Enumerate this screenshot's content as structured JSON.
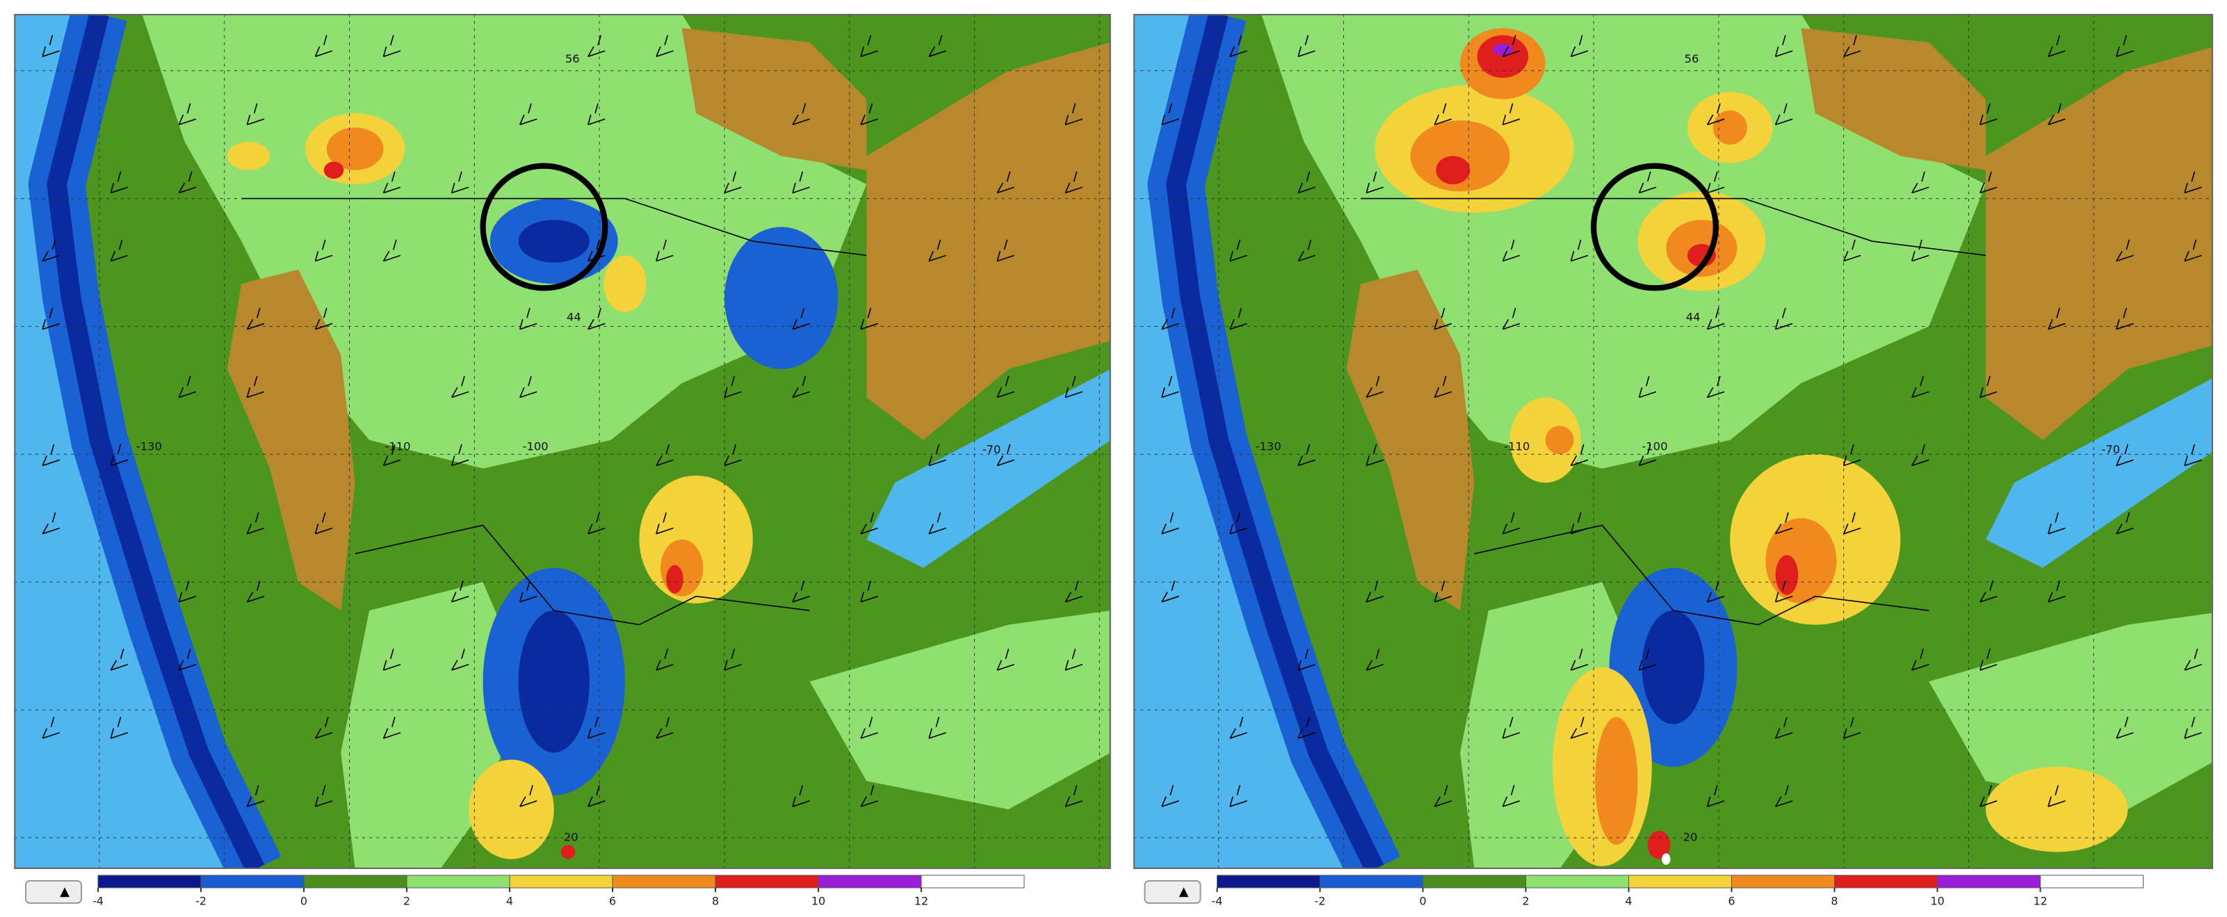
{
  "panels": [
    {
      "grid_labels": [
        "56",
        "44",
        "-130",
        "-110",
        "-100",
        "-70",
        "20"
      ],
      "colorbar": {
        "ticks": [
          -4,
          -2,
          0,
          2,
          4,
          6,
          8,
          10,
          12
        ],
        "colors": [
          "#0a1a8c",
          "#1a5cd2",
          "#4a8f1e",
          "#8fe070",
          "#f3d23a",
          "#f08a1e",
          "#e01e1e",
          "#9a1ed8",
          "#ffffff"
        ]
      }
    },
    {
      "grid_labels": [
        "56",
        "44",
        "-130",
        "-110",
        "-100",
        "-70",
        "20"
      ],
      "colorbar": {
        "ticks": [
          -4,
          -2,
          0,
          2,
          4,
          6,
          8,
          10,
          12
        ],
        "colors": [
          "#0a1a8c",
          "#1a5cd2",
          "#4a8f1e",
          "#8fe070",
          "#f3d23a",
          "#f08a1e",
          "#e01e1e",
          "#9a1ed8",
          "#ffffff"
        ]
      }
    }
  ]
}
